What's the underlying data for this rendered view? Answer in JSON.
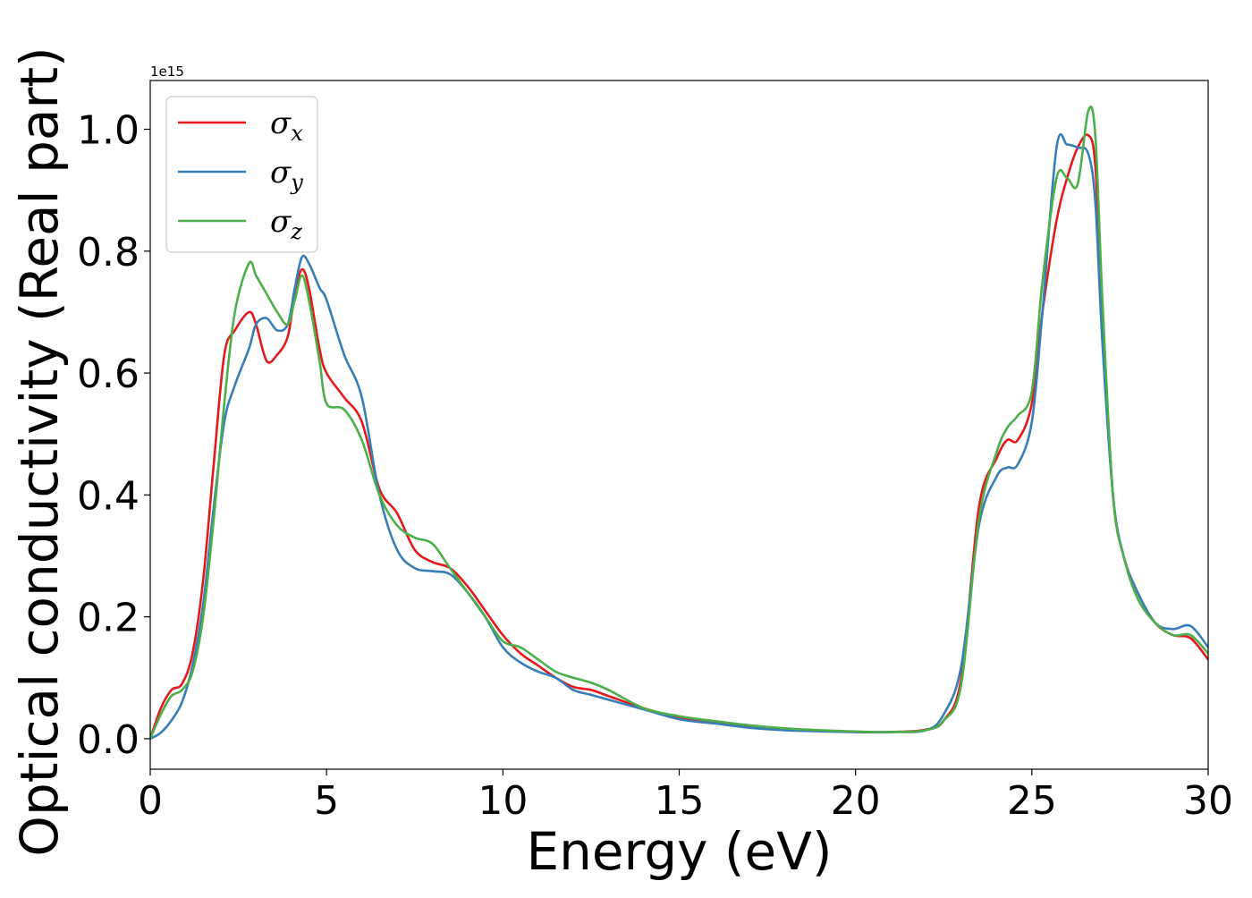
{
  "chart_data": {
    "type": "line",
    "title": "",
    "xlabel": "Energy (eV)",
    "ylabel": "Optical conductivity (Real part)",
    "xlim": [
      0,
      30
    ],
    "ylim": [
      -0.05,
      1.08
    ],
    "y_scale_offset_text": "1e15",
    "x_ticks": [
      "0",
      "5",
      "10",
      "15",
      "20",
      "25",
      "30"
    ],
    "y_ticks": [
      "0.0",
      "0.2",
      "0.4",
      "0.6",
      "0.8",
      "1.0"
    ],
    "grid": false,
    "legend_position": "top-left",
    "series": [
      {
        "name": "σx",
        "legend_symbol": "σ",
        "legend_subscript": "x",
        "color": "#e31a1c",
        "x": [
          0,
          0.3,
          0.6,
          0.9,
          1.2,
          1.5,
          1.8,
          2.1,
          2.4,
          2.8,
          3.0,
          3.3,
          3.6,
          3.9,
          4.1,
          4.3,
          4.5,
          4.8,
          5.0,
          5.5,
          6.0,
          6.5,
          7.0,
          7.5,
          8.0,
          8.5,
          9.0,
          9.5,
          10.0,
          10.5,
          11.0,
          11.5,
          12.0,
          12.5,
          13.0,
          14.0,
          15.0,
          16.0,
          17.0,
          18.0,
          19.0,
          20.0,
          21.0,
          22.0,
          22.5,
          23.0,
          23.5,
          24.0,
          24.3,
          24.6,
          25.0,
          25.3,
          25.7,
          26.0,
          26.3,
          26.6,
          26.8,
          27.0,
          27.3,
          27.6,
          28.0,
          28.5,
          29.0,
          29.5,
          30.0
        ],
        "values": [
          0.0,
          0.05,
          0.08,
          0.09,
          0.14,
          0.26,
          0.45,
          0.63,
          0.67,
          0.7,
          0.68,
          0.62,
          0.63,
          0.66,
          0.73,
          0.77,
          0.74,
          0.64,
          0.6,
          0.56,
          0.52,
          0.41,
          0.37,
          0.31,
          0.29,
          0.28,
          0.25,
          0.21,
          0.17,
          0.14,
          0.12,
          0.1,
          0.085,
          0.08,
          0.07,
          0.05,
          0.035,
          0.027,
          0.021,
          0.016,
          0.013,
          0.011,
          0.011,
          0.015,
          0.03,
          0.1,
          0.38,
          0.46,
          0.49,
          0.49,
          0.55,
          0.7,
          0.85,
          0.92,
          0.97,
          0.99,
          0.94,
          0.7,
          0.4,
          0.3,
          0.24,
          0.19,
          0.17,
          0.165,
          0.13
        ]
      },
      {
        "name": "σy",
        "legend_symbol": "σ",
        "legend_subscript": "y",
        "color": "#377eb8",
        "x": [
          0,
          0.3,
          0.6,
          0.9,
          1.2,
          1.5,
          1.8,
          2.1,
          2.4,
          2.8,
          3.0,
          3.3,
          3.6,
          3.9,
          4.1,
          4.3,
          4.5,
          4.8,
          5.0,
          5.5,
          6.0,
          6.5,
          7.0,
          7.5,
          8.0,
          8.5,
          9.0,
          9.5,
          10.0,
          10.5,
          11.0,
          11.5,
          12.0,
          12.5,
          13.0,
          14.0,
          15.0,
          16.0,
          17.0,
          18.0,
          19.0,
          20.0,
          21.0,
          22.0,
          22.5,
          23.0,
          23.5,
          24.0,
          24.3,
          24.6,
          25.0,
          25.3,
          25.7,
          26.0,
          26.3,
          26.6,
          26.8,
          27.0,
          27.3,
          27.6,
          28.0,
          28.5,
          29.0,
          29.5,
          30.0
        ],
        "values": [
          0.0,
          0.01,
          0.03,
          0.06,
          0.12,
          0.22,
          0.38,
          0.52,
          0.58,
          0.64,
          0.68,
          0.69,
          0.67,
          0.68,
          0.74,
          0.79,
          0.78,
          0.74,
          0.72,
          0.63,
          0.56,
          0.4,
          0.31,
          0.28,
          0.275,
          0.27,
          0.24,
          0.2,
          0.15,
          0.125,
          0.11,
          0.1,
          0.08,
          0.072,
          0.064,
          0.048,
          0.032,
          0.025,
          0.018,
          0.014,
          0.012,
          0.011,
          0.011,
          0.014,
          0.04,
          0.12,
          0.35,
          0.43,
          0.445,
          0.45,
          0.52,
          0.7,
          0.97,
          0.975,
          0.97,
          0.96,
          0.88,
          0.65,
          0.4,
          0.3,
          0.24,
          0.19,
          0.18,
          0.185,
          0.15
        ]
      },
      {
        "name": "σz",
        "legend_symbol": "σ",
        "legend_subscript": "z",
        "color": "#4daf4a",
        "x": [
          0,
          0.3,
          0.6,
          0.9,
          1.2,
          1.5,
          1.8,
          2.1,
          2.4,
          2.8,
          3.0,
          3.3,
          3.6,
          3.9,
          4.1,
          4.3,
          4.5,
          4.8,
          5.0,
          5.5,
          6.0,
          6.5,
          7.0,
          7.5,
          8.0,
          8.5,
          9.0,
          9.5,
          10.0,
          10.5,
          11.0,
          11.5,
          12.0,
          12.5,
          13.0,
          14.0,
          15.0,
          16.0,
          17.0,
          18.0,
          19.0,
          20.0,
          21.0,
          22.0,
          22.5,
          23.0,
          23.5,
          24.0,
          24.3,
          24.6,
          25.0,
          25.3,
          25.7,
          26.0,
          26.3,
          26.6,
          26.8,
          27.0,
          27.3,
          27.6,
          28.0,
          28.5,
          29.0,
          29.5,
          30.0
        ],
        "values": [
          0.0,
          0.04,
          0.07,
          0.08,
          0.11,
          0.2,
          0.36,
          0.55,
          0.7,
          0.78,
          0.76,
          0.73,
          0.7,
          0.68,
          0.72,
          0.76,
          0.72,
          0.62,
          0.55,
          0.54,
          0.49,
          0.4,
          0.35,
          0.33,
          0.32,
          0.28,
          0.24,
          0.2,
          0.16,
          0.15,
          0.13,
          0.11,
          0.1,
          0.092,
          0.08,
          0.05,
          0.037,
          0.029,
          0.022,
          0.017,
          0.014,
          0.012,
          0.011,
          0.014,
          0.03,
          0.09,
          0.36,
          0.47,
          0.51,
          0.53,
          0.57,
          0.75,
          0.92,
          0.92,
          0.91,
          1.03,
          0.99,
          0.72,
          0.4,
          0.3,
          0.23,
          0.19,
          0.17,
          0.17,
          0.14
        ]
      }
    ]
  }
}
